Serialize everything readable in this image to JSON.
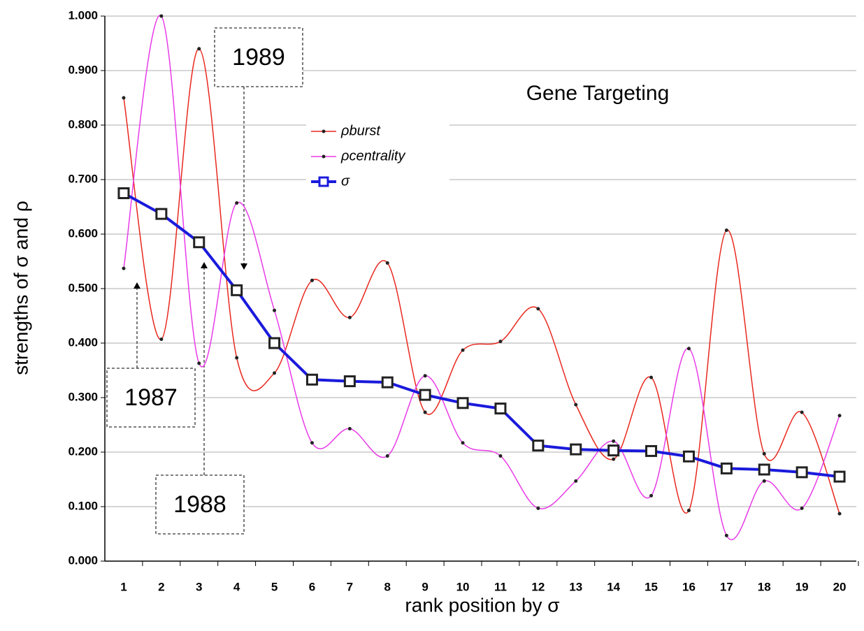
{
  "chart_data": {
    "type": "line",
    "title": "Gene Targeting",
    "x_label": "rank position by σ",
    "y_label": "strengths of σ and ρ",
    "categories": [
      "1",
      "2",
      "3",
      "4",
      "5",
      "6",
      "7",
      "8",
      "9",
      "10",
      "11",
      "12",
      "13",
      "14",
      "15",
      "16",
      "17",
      "18",
      "19",
      "20"
    ],
    "series": [
      {
        "name": "ρburst",
        "color": "#e8281e",
        "smooth": true,
        "values": [
          0.85,
          0.407,
          0.94,
          0.373,
          0.345,
          0.515,
          0.447,
          0.547,
          0.273,
          0.387,
          0.403,
          0.463,
          0.287,
          0.187,
          0.337,
          0.093,
          0.607,
          0.197,
          0.273,
          0.087
        ]
      },
      {
        "name": "ρcentrality",
        "color": "#e83be8",
        "smooth": true,
        "values": [
          0.537,
          1.0,
          0.363,
          0.657,
          0.46,
          0.217,
          0.243,
          0.193,
          0.34,
          0.217,
          0.193,
          0.097,
          0.147,
          0.22,
          0.12,
          0.39,
          0.047,
          0.147,
          0.097,
          0.267
        ]
      },
      {
        "name": "σ",
        "color": "#1a1adc",
        "smooth": false,
        "values": [
          0.675,
          0.637,
          0.585,
          0.497,
          0.4,
          0.333,
          0.33,
          0.328,
          0.305,
          0.29,
          0.28,
          0.212,
          0.205,
          0.203,
          0.202,
          0.192,
          0.17,
          0.168,
          0.163,
          0.155
        ]
      }
    ],
    "ylim": [
      0,
      1
    ],
    "yticks": [
      {
        "value": 0,
        "label": "0.000"
      },
      {
        "value": 0.1,
        "label": "0.100"
      },
      {
        "value": 0.2,
        "label": "0.200"
      },
      {
        "value": 0.3,
        "label": "0.300"
      },
      {
        "value": 0.4,
        "label": "0.400"
      },
      {
        "value": 0.5,
        "label": "0.500"
      },
      {
        "value": 0.6,
        "label": "0.600"
      },
      {
        "value": 0.7,
        "label": "0.700"
      },
      {
        "value": 0.8,
        "label": "0.800"
      },
      {
        "value": 0.9,
        "label": "0.900"
      },
      {
        "value": 1,
        "label": "1.000"
      }
    ],
    "grid": true,
    "annotations": [
      {
        "text": "1987"
      },
      {
        "text": "1988"
      },
      {
        "text": "1989"
      }
    ]
  }
}
